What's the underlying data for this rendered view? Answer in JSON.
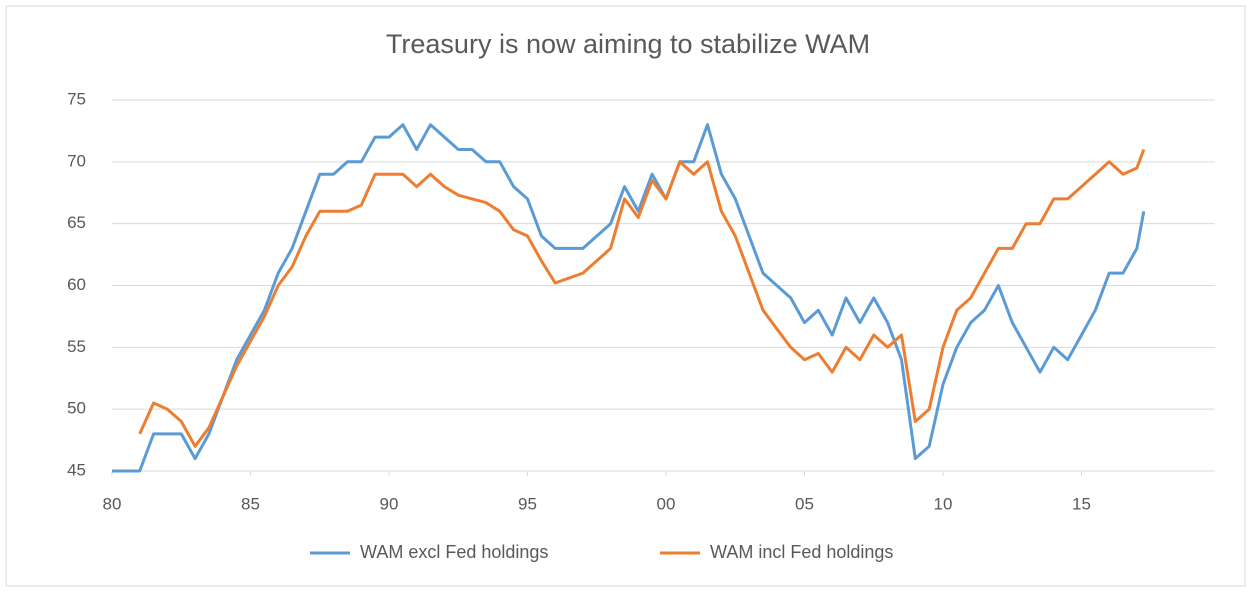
{
  "chart_data": {
    "type": "line",
    "title": "Treasury is now aiming to stabilize WAM",
    "x": [
      1980,
      1980.5,
      1981,
      1981.5,
      1982,
      1982.5,
      1983,
      1983.5,
      1984,
      1984.5,
      1985,
      1985.5,
      1986,
      1986.5,
      1987,
      1987.5,
      1988,
      1988.5,
      1989,
      1989.5,
      1990,
      1990.5,
      1991,
      1991.5,
      1992,
      1992.5,
      1993,
      1993.5,
      1994,
      1994.5,
      1995,
      1995.5,
      1996,
      1996.5,
      1997,
      1997.5,
      1998,
      1998.5,
      1999,
      1999.5,
      2000,
      2000.5,
      2001,
      2001.5,
      2002,
      2002.5,
      2003,
      2003.5,
      2004,
      2004.5,
      2005,
      2005.5,
      2006,
      2006.5,
      2007,
      2007.5,
      2008,
      2008.5,
      2009,
      2009.5,
      2010,
      2010.5,
      2011,
      2011.5,
      2012,
      2012.5,
      2013,
      2013.5,
      2014,
      2014.5,
      2015,
      2015.5,
      2016,
      2016.5,
      2017,
      2017.25
    ],
    "series": [
      {
        "name": "WAM excl Fed holdings",
        "color": "#5b9bd5",
        "values": [
          45,
          45,
          45,
          48,
          48,
          48,
          46,
          48,
          51,
          54,
          56,
          58,
          61,
          63,
          66,
          69,
          69,
          70,
          70,
          72,
          72,
          73,
          71,
          73,
          72,
          71,
          71,
          70,
          70,
          68,
          67,
          64,
          63,
          63,
          63,
          64,
          65,
          68,
          66,
          69,
          67,
          70,
          70,
          73,
          69,
          67,
          64,
          61,
          60,
          59,
          57,
          58,
          56,
          59,
          57,
          59,
          57,
          54,
          46,
          47,
          52,
          55,
          57,
          58,
          60,
          57,
          55,
          53,
          55,
          54,
          56,
          58,
          61,
          61,
          63,
          66
        ]
      },
      {
        "name": "WAM incl Fed holdings",
        "color": "#ed7d31",
        "values": [
          null,
          null,
          48,
          50.5,
          50,
          49,
          47,
          48.5,
          51,
          53.5,
          55.5,
          57.5,
          60,
          61.5,
          64,
          66,
          66,
          66,
          66.5,
          69,
          69,
          69,
          68,
          69,
          68,
          67.3,
          67,
          66.7,
          66,
          64.5,
          64,
          62,
          60.2,
          60.6,
          61,
          62,
          63,
          67,
          65.5,
          68.5,
          67,
          70,
          69,
          70,
          66,
          64,
          61,
          58,
          56.5,
          55,
          54,
          54.5,
          53,
          55,
          54,
          56,
          55,
          56,
          49,
          50,
          55,
          58,
          59,
          61,
          63,
          63,
          65,
          65,
          67,
          67,
          68,
          69,
          70,
          69,
          69.5,
          71
        ]
      }
    ],
    "xlim": [
      1980,
      2020
    ],
    "xticks": [
      {
        "value": 1980,
        "label": "80"
      },
      {
        "value": 1985,
        "label": "85"
      },
      {
        "value": 1990,
        "label": "90"
      },
      {
        "value": 1995,
        "label": "95"
      },
      {
        "value": 2000,
        "label": "00"
      },
      {
        "value": 2005,
        "label": "05"
      },
      {
        "value": 2010,
        "label": "10"
      },
      {
        "value": 2015,
        "label": "15"
      }
    ],
    "ylim": [
      45,
      75
    ],
    "yticks": [
      45,
      50,
      55,
      60,
      65,
      70,
      75
    ],
    "grid": true,
    "legend": "bottom"
  }
}
